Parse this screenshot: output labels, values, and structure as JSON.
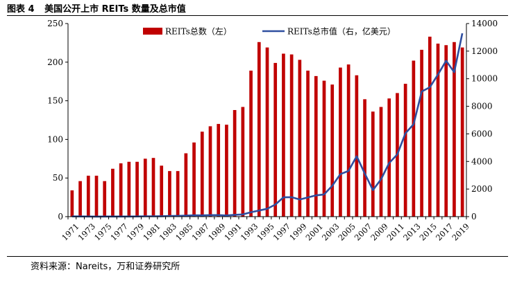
{
  "figure": {
    "number_label": "图表 4",
    "title": "美国公开上市 REITs 数量及总市值",
    "source": "资料来源：Nareits，万和证券研究所"
  },
  "chart_data": {
    "type": "bar+line",
    "title": "美国公开上市 REITs 数量及总市值",
    "categories": [
      1971,
      1972,
      1973,
      1974,
      1975,
      1976,
      1977,
      1978,
      1979,
      1980,
      1981,
      1982,
      1983,
      1984,
      1985,
      1986,
      1987,
      1988,
      1989,
      1990,
      1991,
      1992,
      1993,
      1994,
      1995,
      1996,
      1997,
      1998,
      1999,
      2000,
      2001,
      2002,
      2003,
      2004,
      2005,
      2006,
      2007,
      2008,
      2009,
      2010,
      2011,
      2012,
      2013,
      2014,
      2015,
      2016,
      2017,
      2018,
      2019
    ],
    "x_tick_labels": [
      "1971",
      "1973",
      "1975",
      "1977",
      "1979",
      "1981",
      "1983",
      "1985",
      "1987",
      "1989",
      "1991",
      "1993",
      "1995",
      "1997",
      "1999",
      "2001",
      "2003",
      "2005",
      "2007",
      "2009",
      "2011",
      "2013",
      "2015",
      "2017",
      "2019"
    ],
    "series": [
      {
        "name": "REITs总数（左）",
        "type": "bar",
        "axis": "left",
        "color": "#c00000",
        "values": [
          34,
          46,
          53,
          53,
          46,
          62,
          69,
          71,
          71,
          75,
          76,
          66,
          59,
          59,
          82,
          96,
          110,
          117,
          120,
          119,
          138,
          142,
          189,
          226,
          219,
          199,
          211,
          210,
          203,
          189,
          182,
          176,
          171,
          193,
          197,
          183,
          152,
          136,
          142,
          153,
          160,
          172,
          202,
          216,
          233,
          224,
          222,
          226,
          219
        ]
      },
      {
        "name": "REITs总市值（右，亿美元）",
        "type": "line",
        "axis": "right",
        "color": "#2e4e9f",
        "values": [
          15,
          14,
          10,
          7,
          9,
          11,
          10,
          12,
          14,
          23,
          27,
          30,
          44,
          55,
          75,
          98,
          92,
          109,
          108,
          87,
          128,
          160,
          322,
          440,
          570,
          880,
          1400,
          1410,
          1240,
          1390,
          1540,
          1610,
          2240,
          3080,
          3310,
          4380,
          3120,
          1920,
          2710,
          3890,
          4510,
          6040,
          6700,
          9070,
          9380,
          10300,
          11300,
          10470,
          13290
        ]
      }
    ],
    "left_axis": {
      "min": 0,
      "max": 250,
      "ticks": [
        0,
        50,
        100,
        150,
        200,
        250
      ]
    },
    "right_axis": {
      "min": 0,
      "max": 14000,
      "ticks": [
        0,
        2000,
        4000,
        6000,
        8000,
        10000,
        12000,
        14000
      ]
    },
    "legend_position": "top-center",
    "grid": false
  }
}
